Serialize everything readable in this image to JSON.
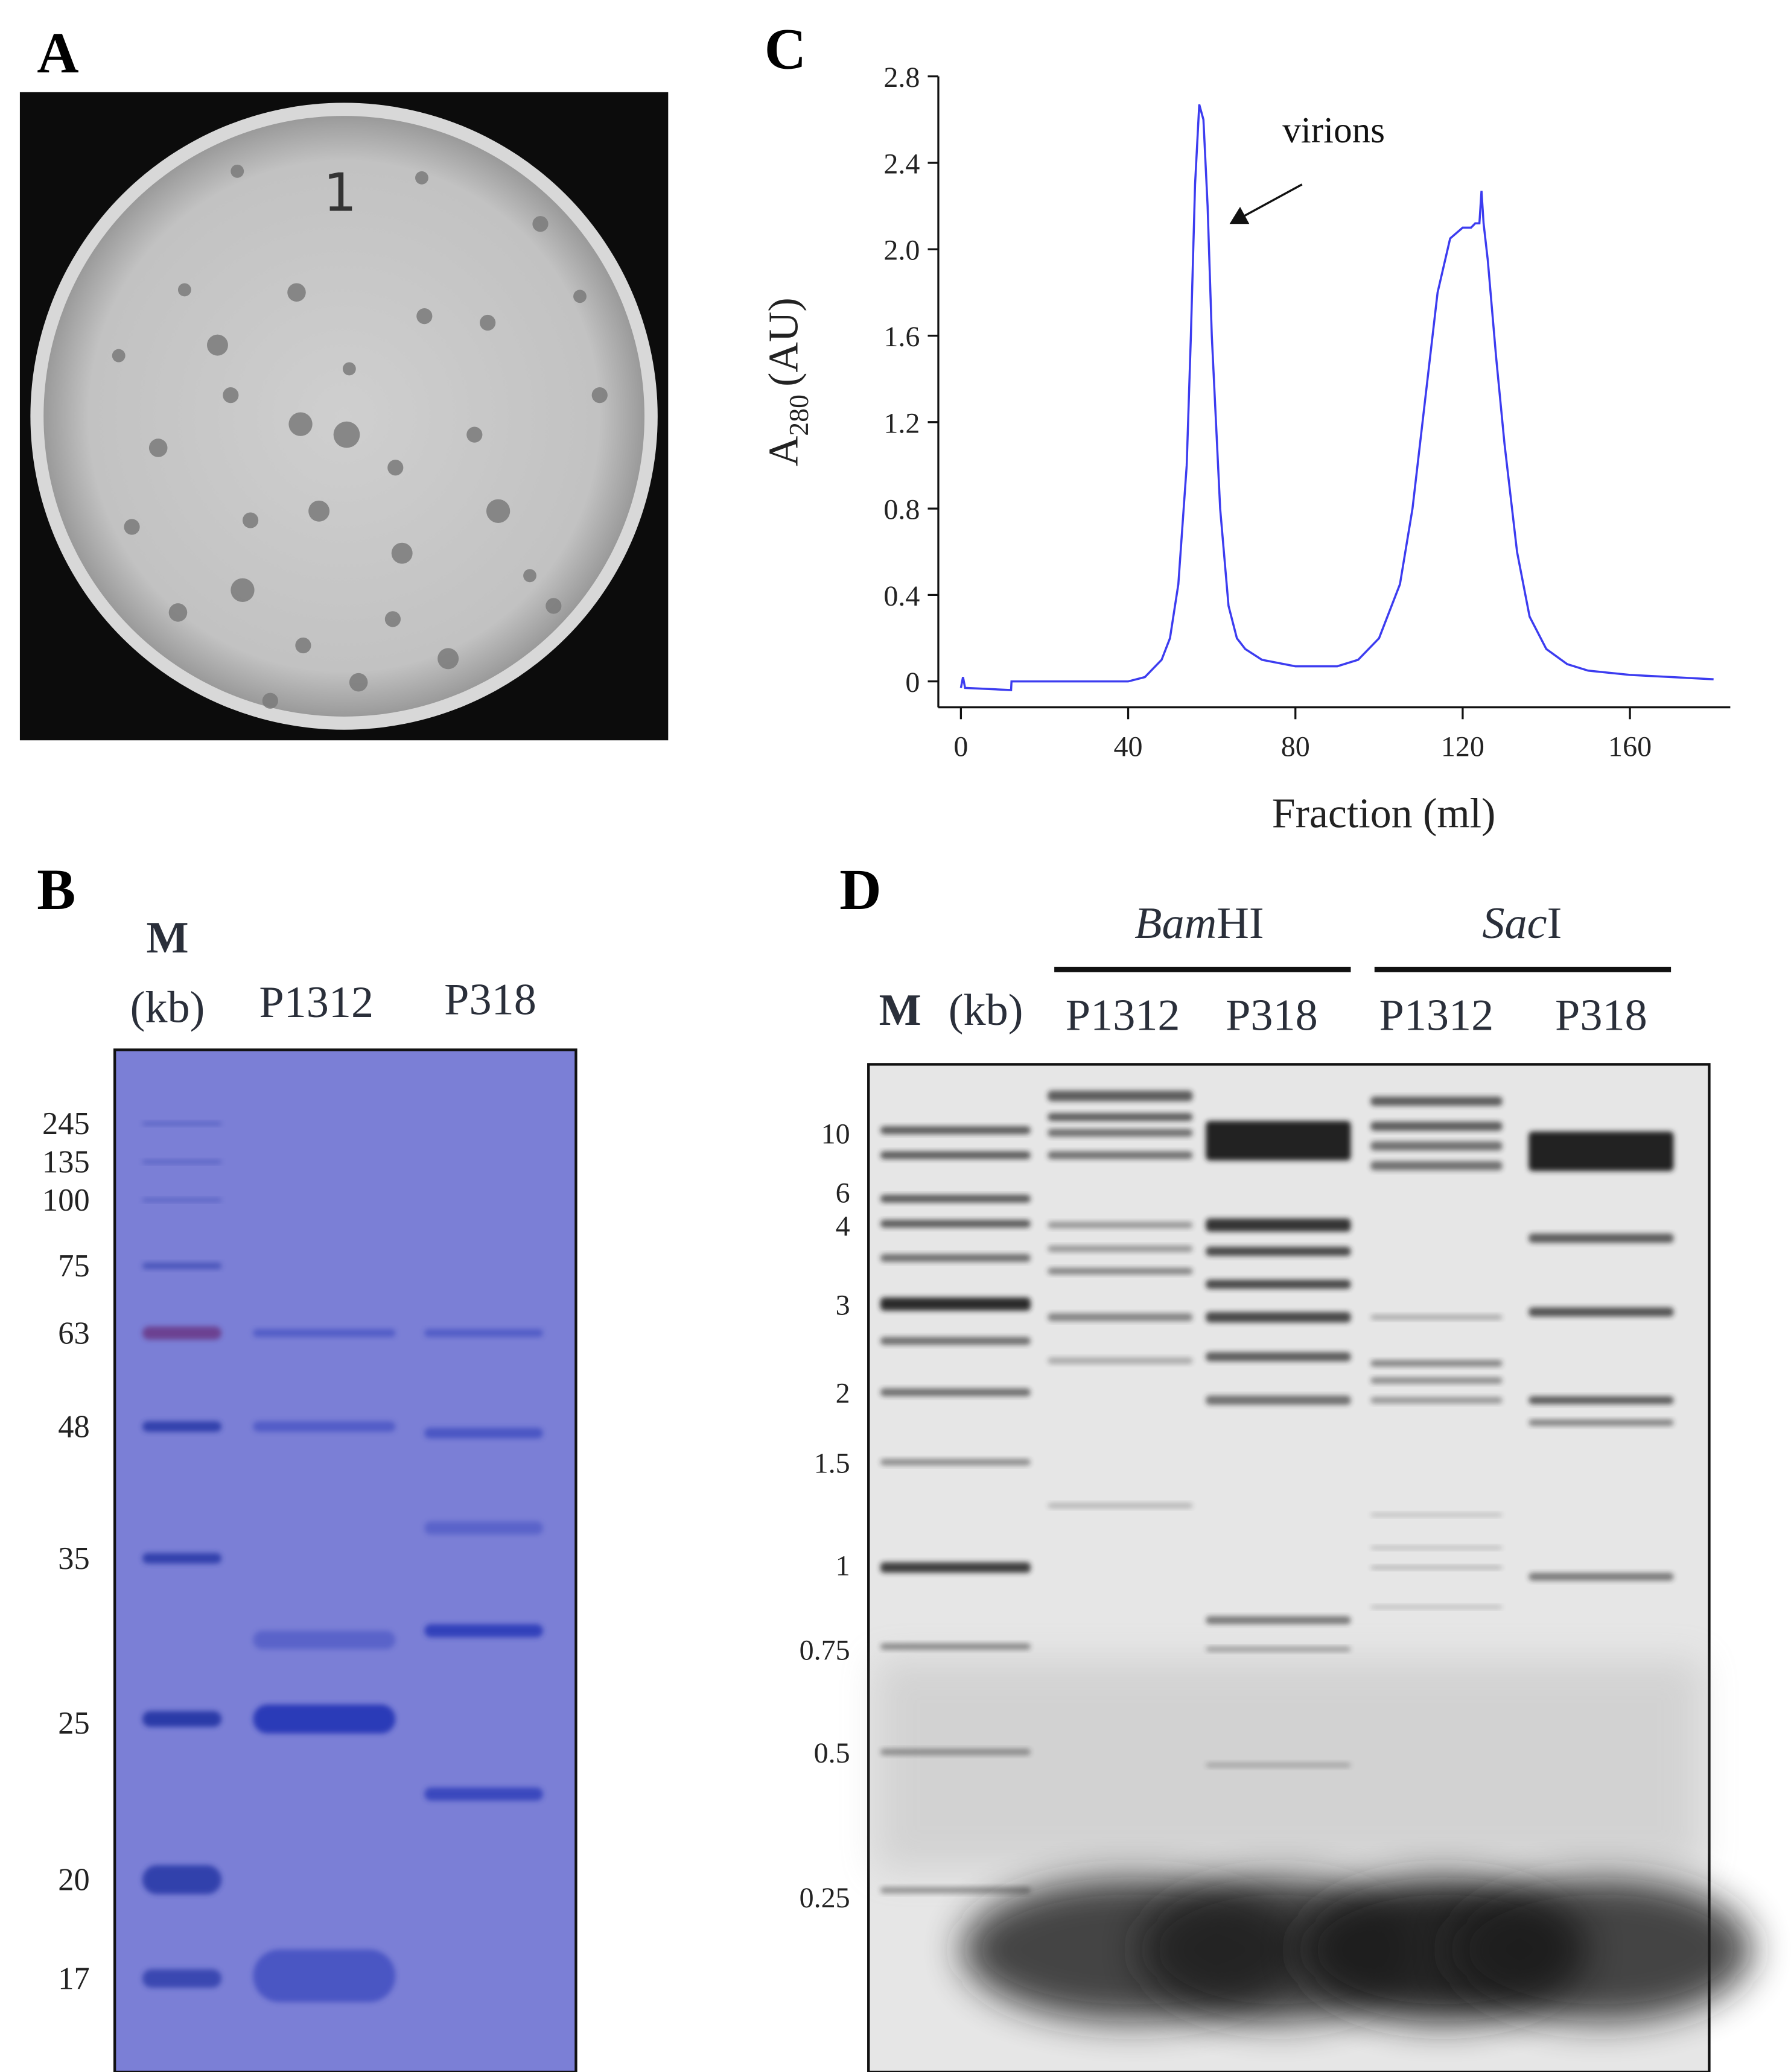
{
  "panel_labels": [
    "A",
    "B",
    "C",
    "D"
  ],
  "plate": {
    "mark": "1"
  },
  "protein_gel": {
    "marker": "M",
    "unit": "(kb)",
    "lanes": [
      "P1312",
      "P318"
    ],
    "marker_sizes": [
      "245",
      "135",
      "100",
      "75",
      "63",
      "48",
      "35",
      "25",
      "20",
      "17"
    ]
  },
  "chart_data": {
    "type": "line",
    "y_label": {
      "main": "A",
      "subscript": "280",
      "unit": "(AU)"
    },
    "x_label": "Fraction (ml)",
    "annotation": "virions",
    "x": [
      0,
      0.5,
      1,
      12,
      12.1,
      20,
      40,
      44,
      48,
      50,
      52,
      54,
      55,
      56,
      57,
      58,
      59,
      60,
      62,
      64,
      66,
      68,
      72,
      80,
      90,
      95,
      100,
      105,
      108,
      111,
      114,
      117,
      120,
      122,
      123,
      124,
      124.5,
      125,
      126,
      128,
      130,
      133,
      136,
      140,
      145,
      150,
      160,
      170,
      180
    ],
    "series": [
      {
        "color": "#3c3cf0",
        "values": [
          -0.03,
          0.02,
          -0.03,
          -0.04,
          0,
          0,
          0,
          0.02,
          0.1,
          0.2,
          0.45,
          1.0,
          1.6,
          2.3,
          2.67,
          2.6,
          2.2,
          1.6,
          0.8,
          0.35,
          0.2,
          0.15,
          0.1,
          0.07,
          0.07,
          0.1,
          0.2,
          0.45,
          0.8,
          1.3,
          1.8,
          2.05,
          2.1,
          2.1,
          2.12,
          2.12,
          2.27,
          2.12,
          1.95,
          1.5,
          1.1,
          0.6,
          0.3,
          0.15,
          0.08,
          0.05,
          0.03,
          0.02,
          0.01
        ]
      }
    ],
    "xlim": [
      -5.4,
      184
    ],
    "ylim": [
      -0.12,
      2.8
    ],
    "xticks": [
      0,
      40,
      80,
      120,
      160
    ],
    "yticks": [
      0,
      0.4,
      0.8,
      1.2,
      1.6,
      {
        "value": 2,
        "label": "2.0"
      },
      2.4,
      2.8
    ]
  },
  "dna_gel": {
    "marker": "M",
    "unit": "(kb)",
    "enzymes": [
      {
        "italic": "Bam",
        "rest": "HI"
      },
      {
        "italic": "Sac",
        "rest": "I"
      }
    ],
    "lanes": [
      "P1312",
      "P318",
      "P1312",
      "P318"
    ],
    "marker_sizes": [
      "10",
      "6",
      "4",
      "3",
      "2",
      "1.5",
      "1",
      "0.75",
      "0.5",
      "0.25"
    ]
  }
}
